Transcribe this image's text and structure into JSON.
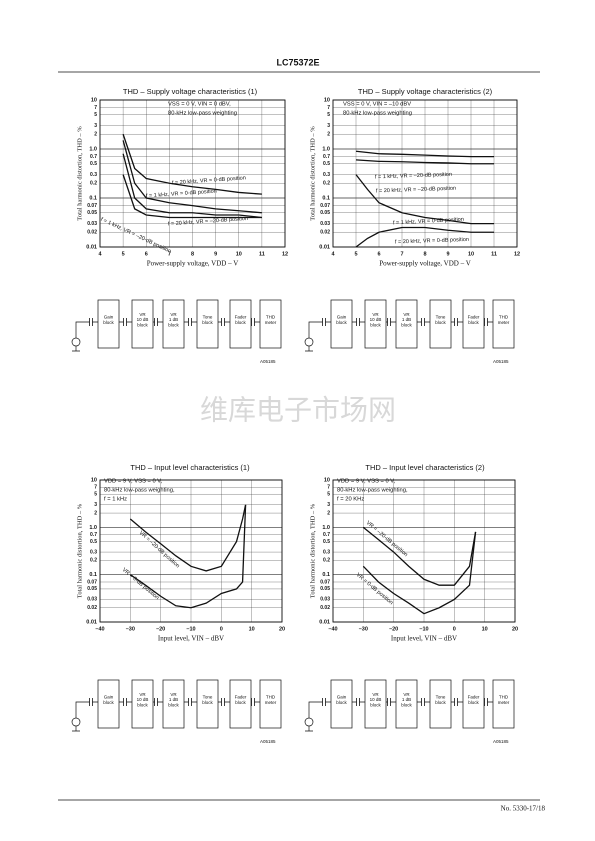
{
  "header": {
    "title": "LC75372E"
  },
  "footer": {
    "page": "No. 5330-17/18"
  },
  "watermark": "维库电子市场网",
  "chart_data": [
    {
      "type": "line",
      "title": "THD – Supply voltage characteristics (1)",
      "x_label": "Power-supply voltage, VDD – V",
      "y_label": "Total harmonic distortion, THD – %",
      "annotations": [
        "VSS = 0 V, VIN = 0 dBV,",
        "80-kHz low-pass weighting"
      ],
      "log_y": true,
      "grid": true,
      "x": [
        5,
        5.5,
        6,
        7,
        8,
        9,
        10,
        11
      ],
      "series": [
        {
          "name": "f = 20 kHz, VR = 0-dB position",
          "color": "#111111",
          "values": [
            2,
            0.4,
            0.25,
            0.2,
            0.17,
            0.15,
            0.13,
            0.12
          ]
        },
        {
          "name": "f = 1 kHz, VR = 0-dB position",
          "color": "#111111",
          "values": [
            1.5,
            0.2,
            0.1,
            0.08,
            0.07,
            0.06,
            0.055,
            0.05
          ]
        },
        {
          "name": "f = 20 kHz, VR = –20-dB position",
          "color": "#111111",
          "values": [
            0.8,
            0.1,
            0.06,
            0.05,
            0.05,
            0.045,
            0.045,
            0.04
          ]
        },
        {
          "name": "f = 1 kHz, VR = –20-dB position",
          "color": "#111111",
          "values": [
            0.3,
            0.06,
            0.045,
            0.04,
            0.04,
            0.04,
            0.04,
            0.04
          ]
        }
      ],
      "xlim": [
        4,
        12
      ],
      "xticks": [
        4,
        5,
        6,
        7,
        8,
        9,
        10,
        11,
        12
      ],
      "ylim": [
        0.01,
        10
      ],
      "yticks": [
        10,
        7,
        5,
        3,
        2,
        {
          "value": 1,
          "label": "1.0"
        },
        0.7,
        0.5,
        0.3,
        0.2,
        0.1,
        0.07,
        0.05,
        0.03,
        0.02,
        0.01
      ]
    },
    {
      "type": "line",
      "title": "THD – Supply voltage characteristics (2)",
      "x_label": "Power-supply voltage, VDD – V",
      "y_label": "Total harmonic distortion, THD – %",
      "annotations": [
        "VSS = 0 V, VIN = –10 dBV",
        "80-kHz low-pass weighting"
      ],
      "log_y": true,
      "grid": true,
      "x": [
        5,
        5.5,
        6,
        7,
        8,
        9,
        10,
        11
      ],
      "series": [
        {
          "name": "f = 1 kHz, VR = –20-dB position",
          "color": "#111111",
          "values": [
            0.9,
            0.85,
            0.8,
            0.78,
            0.75,
            0.72,
            0.7,
            0.7
          ]
        },
        {
          "name": "f = 20 kHz, VR = –20-dB position",
          "color": "#111111",
          "values": [
            0.6,
            0.58,
            0.56,
            0.55,
            0.53,
            0.52,
            0.5,
            0.5
          ]
        },
        {
          "name": "f = 1 kHz, VR = 0-dB position",
          "color": "#111111",
          "values": [
            0.3,
            0.15,
            0.08,
            0.05,
            0.04,
            0.035,
            0.03,
            0.03
          ]
        },
        {
          "name": "f = 20 kHz, VR = 0-dB position",
          "color": "#111111",
          "values": [
            0.01,
            0.015,
            0.02,
            0.025,
            0.025,
            0.022,
            0.02,
            0.02
          ]
        }
      ],
      "xlim": [
        4,
        12
      ],
      "xticks": [
        4,
        5,
        6,
        7,
        8,
        9,
        10,
        11,
        12
      ],
      "ylim": [
        0.01,
        10
      ],
      "yticks": [
        10,
        7,
        5,
        3,
        2,
        {
          "value": 1,
          "label": "1.0"
        },
        0.7,
        0.5,
        0.3,
        0.2,
        0.1,
        0.07,
        0.05,
        0.03,
        0.02,
        0.01
      ]
    },
    {
      "type": "line",
      "title": "THD – Input level characteristics (1)",
      "x_label": "Input level, VIN – dBV",
      "y_label": "Total harmonic distortion, THD – %",
      "annotations": [
        "VDD = 9 V, VSS = 0 V,",
        "80-kHz low-pass weighting,",
        "f = 1 kHz"
      ],
      "log_y": true,
      "grid": true,
      "x": [
        -30,
        -25,
        -20,
        -15,
        -10,
        -5,
        0,
        5,
        7,
        8
      ],
      "series": [
        {
          "name": "VR = –20-dB position",
          "color": "#111111",
          "values": [
            1.5,
            0.8,
            0.45,
            0.25,
            0.15,
            0.12,
            0.15,
            0.5,
            1.5,
            3
          ]
        },
        {
          "name": "VR = 0-dB position",
          "color": "#111111",
          "values": [
            0.1,
            0.06,
            0.035,
            0.022,
            0.02,
            0.025,
            0.04,
            0.05,
            0.07,
            3
          ]
        }
      ],
      "xlim": [
        -40,
        20
      ],
      "xticks": [
        {
          "value": -40,
          "label": "–40"
        },
        {
          "value": -30,
          "label": "–30"
        },
        {
          "value": -20,
          "label": "–20"
        },
        {
          "value": -10,
          "label": "–10"
        },
        0,
        10,
        20
      ],
      "ylim": [
        0.01,
        10
      ],
      "yticks": [
        10,
        7,
        5,
        3,
        2,
        {
          "value": 1,
          "label": "1.0"
        },
        0.7,
        0.5,
        0.3,
        0.2,
        0.1,
        0.07,
        0.05,
        0.03,
        0.02,
        0.01
      ]
    },
    {
      "type": "line",
      "title": "THD – Input level characteristics (2)",
      "x_label": "Input level, VIN – dBV",
      "y_label": "Total harmonic distortion, THD – %",
      "annotations": [
        "VDD = 9 V, VSS = 0 V,",
        "80-kHz low-pass weighting,",
        "f = 20 KHz"
      ],
      "log_y": true,
      "grid": true,
      "x": [
        -30,
        -25,
        -20,
        -15,
        -10,
        -5,
        0,
        5,
        7
      ],
      "series": [
        {
          "name": "VR = –20-dB position",
          "color": "#111111",
          "values": [
            1.0,
            0.55,
            0.3,
            0.15,
            0.08,
            0.06,
            0.06,
            0.15,
            0.8
          ]
        },
        {
          "name": "VR = 0-dB position",
          "color": "#111111",
          "values": [
            0.15,
            0.07,
            0.04,
            0.025,
            0.015,
            0.02,
            0.03,
            0.06,
            0.8
          ]
        }
      ],
      "xlim": [
        -40,
        20
      ],
      "xticks": [
        {
          "value": -40,
          "label": "–40"
        },
        {
          "value": -30,
          "label": "–30"
        },
        {
          "value": -20,
          "label": "–20"
        },
        {
          "value": -10,
          "label": "–10"
        },
        0,
        10,
        20
      ],
      "ylim": [
        0.01,
        10
      ],
      "yticks": [
        10,
        7,
        5,
        3,
        2,
        {
          "value": 1,
          "label": "1.0"
        },
        0.7,
        0.5,
        0.3,
        0.2,
        0.1,
        0.07,
        0.05,
        0.03,
        0.02,
        0.01
      ]
    }
  ],
  "diagrams": [
    {
      "blocks": [
        [
          "Gain",
          "block"
        ],
        [
          "VR",
          "10 dB",
          "block"
        ],
        [
          "VR",
          "1 dB",
          "block"
        ],
        [
          "Tone",
          "block"
        ],
        [
          "Fader",
          "block"
        ],
        [
          "THD",
          "meter"
        ]
      ],
      "code": "A05185"
    },
    {
      "blocks": [
        [
          "Gain",
          "block"
        ],
        [
          "VR",
          "10 dB",
          "block"
        ],
        [
          "VR",
          "1 dB",
          "block"
        ],
        [
          "Tone",
          "block"
        ],
        [
          "Fader",
          "block"
        ],
        [
          "THD",
          "meter"
        ]
      ],
      "code": "A05185"
    },
    {
      "blocks": [
        [
          "Gain",
          "block"
        ],
        [
          "VR",
          "10 dB",
          "block"
        ],
        [
          "VR",
          "1 dB",
          "block"
        ],
        [
          "Tone",
          "block"
        ],
        [
          "Fader",
          "block"
        ],
        [
          "THD",
          "meter"
        ]
      ],
      "code": "A05185"
    },
    {
      "blocks": [
        [
          "Gain",
          "block"
        ],
        [
          "VR",
          "10 dB",
          "block"
        ],
        [
          "VR",
          "1 dB",
          "block"
        ],
        [
          "Tone",
          "block"
        ],
        [
          "Fader",
          "block"
        ],
        [
          "THD",
          "meter"
        ]
      ],
      "code": "A05185"
    }
  ]
}
